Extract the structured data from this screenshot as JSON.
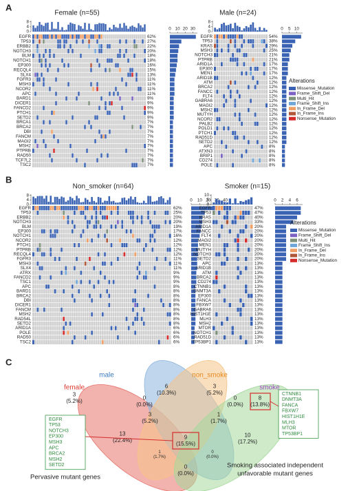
{
  "letters": [
    "A",
    "B",
    "C"
  ],
  "legend": {
    "title": "Alterations",
    "items": [
      {
        "name": "Missense_Mutation",
        "color": "#3a63b4"
      },
      {
        "name": "Frame_Shift_Del",
        "color": "#7b62c4"
      },
      {
        "name": "Multi_Hit",
        "color": "#7f927c"
      },
      {
        "name": "Frame_Shift_Ins",
        "color": "#6ea6d9"
      },
      {
        "name": "In_Frame_Del",
        "color": "#f0a067"
      },
      {
        "name": "In_Frame_Ins",
        "color": "#b0573a"
      },
      {
        "name": "Nonsense_Mutation",
        "color": "#d62b2b"
      }
    ]
  },
  "oncoplots": [
    {
      "title": "Female (n=55)",
      "tmb_ticks": [
        0,
        4,
        8
      ],
      "tmb_lim": [
        0,
        9
      ],
      "count_lim": [
        0,
        36
      ],
      "count_ticks": [
        0,
        10,
        20,
        30
      ],
      "genes": [
        "EGFR",
        "TP53",
        "ERBB2",
        "NOTCH3",
        "BLM",
        "NOTCH1",
        "EP300",
        "RECQL4",
        "SLX4",
        "FGFR3",
        "MSH3",
        "NCOR2",
        "APC",
        "BARD1",
        "DICER1",
        "FANCD2",
        "PTCH1",
        "SETD2",
        "BRCA1",
        "BRCA2",
        "DBI",
        "FANCM",
        "MAGI2",
        "MSH2",
        "PTPRB",
        "RAD50",
        "TCF7L2",
        "TSC2"
      ],
      "pct": [
        "62%",
        "27%",
        "22%",
        "20%",
        "18%",
        "18%",
        "16%",
        "15%",
        "13%",
        "11%",
        "11%",
        "11%",
        "11%",
        "9%",
        "9%",
        "9%",
        "9%",
        "9%",
        "7%",
        "7%",
        "7%",
        "7%",
        "7%",
        "7%",
        "7%",
        "7%",
        "7%",
        "7%"
      ],
      "counts": [
        34,
        15,
        12,
        11,
        10,
        10,
        9,
        8,
        7,
        6,
        6,
        6,
        6,
        5,
        5,
        5,
        5,
        5,
        4,
        4,
        4,
        4,
        4,
        4,
        4,
        4,
        4,
        4
      ]
    },
    {
      "title": "Male (n=24)",
      "tmb_ticks": [
        0,
        4,
        8
      ],
      "tmb_lim": [
        0,
        9
      ],
      "count_lim": [
        0,
        14
      ],
      "count_ticks": [
        0,
        5,
        10
      ],
      "genes": [
        "EGFR",
        "TP53",
        "KRAS",
        "MSH3",
        "NOTCH3",
        "PTPRB",
        "ARID1A",
        "EP300",
        "MEN1",
        "ARID1B",
        "ATM",
        "BRCA2",
        "FANCC",
        "FLT4",
        "GABRA6",
        "MAGI2",
        "MSH2",
        "MUTYH",
        "NCOR2",
        "PALB2",
        "POLD1",
        "PTCH1",
        "RAD51D",
        "SETD2",
        "APC",
        "ATXN3",
        "BRIP1",
        "CD274",
        "POLE"
      ],
      "pct": [
        "54%",
        "38%",
        "29%",
        "25%",
        "21%",
        "21%",
        "17%",
        "17%",
        "17%",
        "12%",
        "12%",
        "12%",
        "12%",
        "12%",
        "12%",
        "12%",
        "12%",
        "12%",
        "12%",
        "12%",
        "12%",
        "12%",
        "12%",
        "12%",
        "8%",
        "8%",
        "8%",
        "8%",
        "8%"
      ],
      "counts": [
        13,
        9,
        7,
        6,
        5,
        5,
        4,
        4,
        4,
        3,
        3,
        3,
        3,
        3,
        3,
        3,
        3,
        3,
        3,
        3,
        3,
        3,
        3,
        3,
        2,
        2,
        2,
        2,
        2
      ]
    },
    {
      "title": "Non_smoker (n=64)",
      "tmb_ticks": [
        0,
        4,
        8
      ],
      "tmb_lim": [
        0,
        9
      ],
      "count_lim": [
        0,
        42
      ],
      "count_ticks": [
        0,
        10,
        20,
        30,
        40
      ],
      "genes": [
        "EGFR",
        "TP53",
        "ERBB2",
        "NOTCH3",
        "BLM",
        "EP300",
        "NOTCH1",
        "NCOR2",
        "PTCH1",
        "PTPRB",
        "RECQL4",
        "FGFR3",
        "MSH3",
        "SLX4",
        "ATRX",
        "FANCD2",
        "TSC1",
        "APC",
        "BARD1",
        "BRCA2",
        "DBI",
        "DICER1",
        "FANCM",
        "MSH2",
        "RAD54L",
        "SETD2",
        "ARID1A",
        "POLE",
        "RAD50",
        "TSC2"
      ],
      "pct": [
        "62%",
        "25%",
        "20%",
        "20%",
        "19%",
        "17%",
        "16%",
        "12%",
        "12%",
        "12%",
        "12%",
        "11%",
        "11%",
        "11%",
        "9%",
        "9%",
        "9%",
        "8%",
        "8%",
        "8%",
        "8%",
        "8%",
        "8%",
        "8%",
        "8%",
        "8%",
        "6%",
        "6%",
        "6%",
        "6%"
      ],
      "counts": [
        40,
        16,
        13,
        13,
        12,
        11,
        10,
        8,
        8,
        8,
        8,
        7,
        7,
        7,
        6,
        6,
        6,
        5,
        5,
        5,
        5,
        5,
        5,
        5,
        5,
        5,
        4,
        4,
        4,
        4
      ]
    },
    {
      "title": "Smoker (n=15)",
      "tmb_ticks": [
        0,
        5,
        10
      ],
      "tmb_lim": [
        0,
        11
      ],
      "count_lim": [
        0,
        7.5
      ],
      "count_ticks": [
        0,
        2,
        4,
        6
      ],
      "genes": [
        "EGFR",
        "TP53",
        "KRAS",
        "MSH3",
        "ARID1A",
        "FANCC",
        "FLT4",
        "MAGI2",
        "MEN1",
        "MUTYH",
        "NOTCH3",
        "SETD2",
        "APC",
        "ARID1B",
        "ATM",
        "BRCA2",
        "CD274",
        "CTNNB1",
        "DNMT3A",
        "EP300",
        "FANCA",
        "FBXW7",
        "GABRA6",
        "HIST1H1E",
        "MLH3",
        "MSH2",
        "MTOR",
        "NOTCH1",
        "RAD51D",
        "TP53BP1"
      ],
      "pct": [
        "47%",
        "47%",
        "40%",
        "33%",
        "20%",
        "20%",
        "20%",
        "20%",
        "20%",
        "20%",
        "20%",
        "20%",
        "13%",
        "13%",
        "13%",
        "13%",
        "13%",
        "13%",
        "13%",
        "13%",
        "13%",
        "13%",
        "13%",
        "13%",
        "13%",
        "13%",
        "13%",
        "13%",
        "13%",
        "13%"
      ],
      "counts": [
        7,
        7,
        6,
        5,
        3,
        3,
        3,
        3,
        3,
        3,
        3,
        3,
        2,
        2,
        2,
        2,
        2,
        2,
        2,
        2,
        2,
        2,
        2,
        2,
        2,
        2,
        2,
        2,
        2,
        2
      ]
    }
  ],
  "venn": {
    "sets": [
      {
        "name": "female",
        "color": "#e8726a",
        "text_color": "#e03c31"
      },
      {
        "name": "male",
        "color": "#8db5de",
        "text_color": "#3b7bc4"
      },
      {
        "name": "non_smoke",
        "color": "#f6c489",
        "text_color": "#e8891f"
      },
      {
        "name": "smoke",
        "color": "#a5d89c",
        "text_color": "#9b4fc0"
      }
    ],
    "regions": [
      {
        "count": "3",
        "pct": "(5.2%)"
      },
      {
        "count": "6",
        "pct": "(10.3%)"
      },
      {
        "count": "3",
        "pct": "(5.2%)"
      },
      {
        "count": "8",
        "pct": "(13.8%)"
      },
      {
        "count": "0",
        "pct": "(0.0%)"
      },
      {
        "count": "0",
        "pct": "(0.0%)"
      },
      {
        "count": "3",
        "pct": "(5.2%)"
      },
      {
        "count": "1",
        "pct": "(1.7%)"
      },
      {
        "count": "13",
        "pct": "(22.4%)"
      },
      {
        "count": "9",
        "pct": "(15.5%)"
      },
      {
        "count": "10",
        "pct": "(17.2%)"
      },
      {
        "count": "1",
        "pct": "(1.7%)"
      },
      {
        "count": "0",
        "pct": "(0.0%)"
      },
      {
        "count": "0",
        "pct": "(0.0%)"
      }
    ],
    "lists": [
      {
        "genes": [
          "EGFR",
          "TP53",
          "NOTCH3",
          "EP300",
          "MSH3",
          "APC",
          "BRCA2",
          "MSH2",
          "SETD2"
        ],
        "caption": [
          "Pervasive mutant genes"
        ]
      },
      {
        "genes": [
          "CTNNB1",
          "DNMT3A",
          "FANCA",
          "FBXW7",
          "HIST1H1E",
          "MLH3",
          "MTOR",
          "TP53BP1"
        ],
        "caption": [
          "Smoking associated independent",
          "unfavorable mutant genes"
        ]
      }
    ]
  }
}
